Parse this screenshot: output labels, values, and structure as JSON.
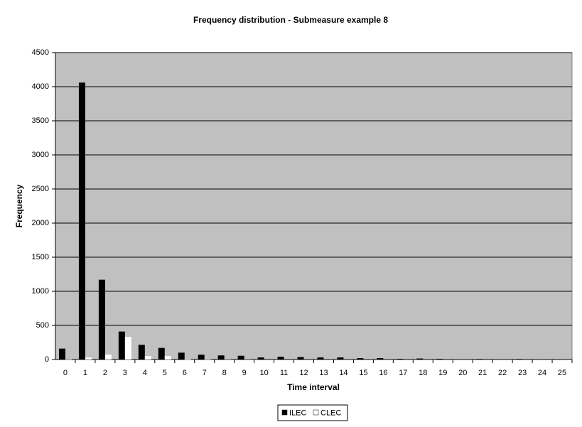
{
  "chart_data": {
    "type": "bar",
    "title": "Frequency distribution - Submeasure example 8",
    "x_label": "Time interval",
    "y_label": "Frequency",
    "categories": [
      "0",
      "1",
      "2",
      "3",
      "4",
      "5",
      "6",
      "7",
      "8",
      "9",
      "10",
      "11",
      "12",
      "13",
      "14",
      "15",
      "16",
      "17",
      "18",
      "19",
      "20",
      "21",
      "22",
      "23",
      "24",
      "25"
    ],
    "series": [
      {
        "name": "ILEC",
        "color": "#000000",
        "values": [
          160,
          4060,
          1170,
          410,
          215,
          170,
          100,
          70,
          60,
          55,
          30,
          40,
          35,
          30,
          30,
          20,
          20,
          10,
          15,
          10,
          5,
          8,
          3,
          8,
          2,
          2
        ]
      },
      {
        "name": "CLEC",
        "color": "#ffffff",
        "values": [
          5,
          30,
          70,
          330,
          50,
          50,
          10,
          5,
          3,
          2,
          0,
          0,
          0,
          0,
          0,
          0,
          0,
          0,
          0,
          0,
          0,
          0,
          0,
          0,
          0,
          0
        ]
      }
    ],
    "ylim": [
      0,
      4500
    ],
    "yticks": [
      0,
      500,
      1000,
      1500,
      2000,
      2500,
      3000,
      3500,
      4000,
      4500
    ],
    "grid": true,
    "plot_background": "#c0c0c0",
    "legend": "bottom"
  }
}
